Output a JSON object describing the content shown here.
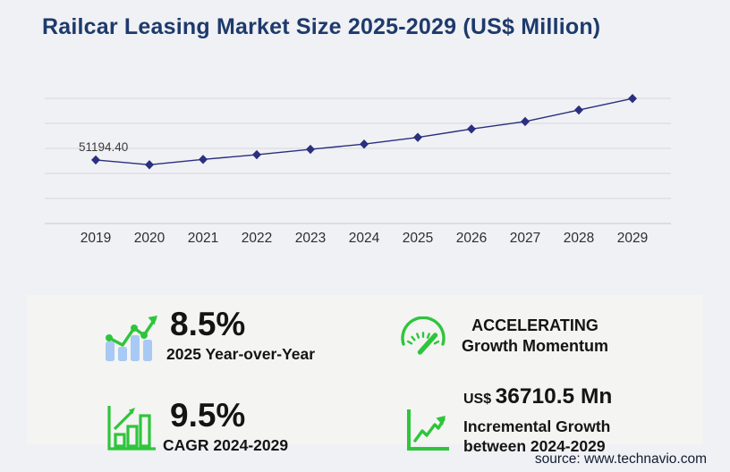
{
  "title": "Railcar Leasing Market Size 2025-2029 (US$ Million)",
  "source": "source: www.technavio.com",
  "chart_data": {
    "type": "line",
    "title": "Railcar Leasing Market Size 2025-2029 (US$ Million)",
    "x": [
      "2019",
      "2020",
      "2021",
      "2022",
      "2023",
      "2024",
      "2025",
      "2026",
      "2027",
      "2028",
      "2029"
    ],
    "series": [
      {
        "name": "Railcar leasing market size (US$ million)",
        "values": [
          51194.4,
          47300,
          51600,
          55400,
          59750,
          63933.4,
          69367.4,
          76100,
          82100,
          91400,
          100643.9
        ]
      }
    ],
    "visible_point_label": {
      "x": "2019",
      "text": "51194.40"
    },
    "xlabel": "",
    "ylabel": "",
    "ylim": [
      0,
      100800
    ],
    "gridlines": {
      "horizontal": true,
      "count": 6
    },
    "legend": "none",
    "marker": "diamond"
  },
  "stats": {
    "yoy": {
      "icon": "bar-chart-trend-icon",
      "value": "8.5%",
      "label": "2025 Year-over-Year"
    },
    "cagr": {
      "icon": "outlined-bar-growth-icon",
      "value": "9.5%",
      "label": "CAGR 2024-2029"
    },
    "momentum": {
      "icon": "speedometer-icon",
      "line1": "ACCELERATING",
      "line2": "Growth Momentum"
    },
    "incremental": {
      "icon": "line-growth-arrow-icon",
      "currency": "US$",
      "value": "36710.5 Mn",
      "label1": "Incremental Growth",
      "label2": "between 2024-2029"
    }
  },
  "colors": {
    "title_navy": "#1e3a6c",
    "line_navy": "#2a2f7e",
    "green": "#2ec53c",
    "light_blue": "#a9c9f5",
    "grid_gray": "#d7d7db",
    "axis_gray": "#c9c9cd",
    "text_dark": "#141414",
    "source_navy": "#121c33",
    "page_bg": "#f0f1f4",
    "panel_bg": "#f4f4f2"
  }
}
